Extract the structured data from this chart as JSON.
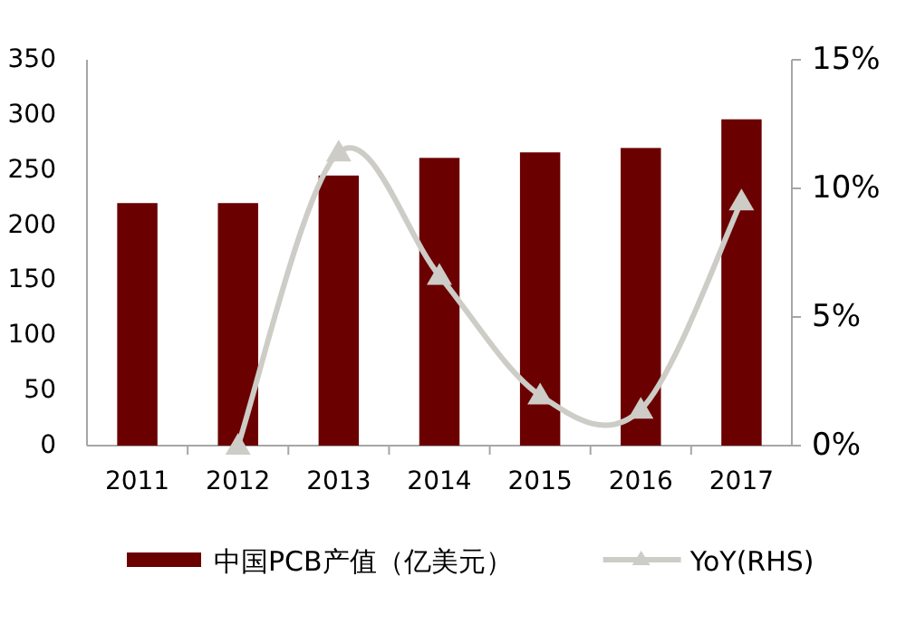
{
  "chart_data": {
    "type": "bar",
    "categories": [
      "2011",
      "2012",
      "2013",
      "2014",
      "2015",
      "2016",
      "2017"
    ],
    "series": [
      {
        "name": "中国PCB产值（亿美元）",
        "color": "#6b0000",
        "values": [
          220,
          220,
          245,
          261,
          266,
          270,
          296
        ]
      },
      {
        "name": "YoY(RHS)",
        "type": "line",
        "axis": "y2",
        "color": "#cdccc6",
        "marker": "triangle",
        "values": [
          null,
          0,
          11.4,
          6.6,
          1.95,
          1.4,
          9.5
        ]
      }
    ],
    "ylim": [
      0,
      350
    ],
    "yticks": [
      0,
      50,
      100,
      150,
      200,
      250,
      300,
      350
    ],
    "y2lim": [
      0,
      15
    ],
    "y2ticks": [
      {
        "value": 0,
        "label": "0%"
      },
      {
        "value": 5,
        "label": "5%"
      },
      {
        "value": 10,
        "label": "10%"
      },
      {
        "value": 15,
        "label": "15%"
      }
    ],
    "legend": "bottom"
  }
}
